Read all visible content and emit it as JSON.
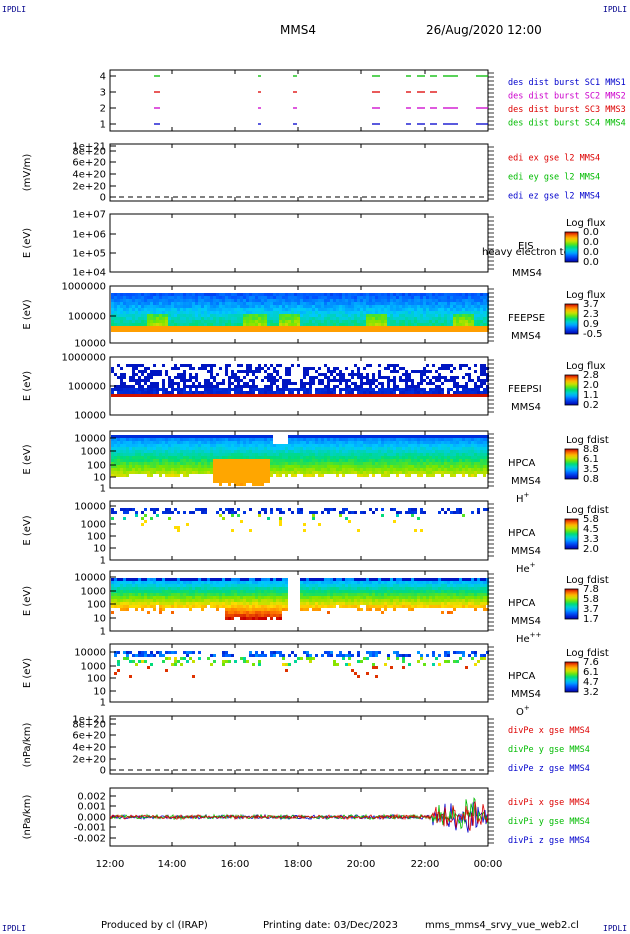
{
  "corner_label": "IPDLI",
  "header": {
    "spacecraft": "MMS4",
    "datetime": "26/Aug/2020 12:00"
  },
  "footer": {
    "produced_by": "Produced by cl (IRAP)",
    "printing_date": "Printing date: 03/Dec/2023",
    "script": "mms_mms4_srvy_vue_web2.cl"
  },
  "colors": {
    "mms1": "#0000cc",
    "mms2": "#cc00cc",
    "mms3": "#dd0000",
    "mms4": "#00bb00",
    "x": "#dd0000",
    "y": "#00bb00",
    "z": "#0000cc"
  },
  "chart_data": {
    "type": "multi-panel time series",
    "x_tick_labels": [
      "12:00",
      "14:00",
      "16:00",
      "18:00",
      "20:00",
      "22:00",
      "00:00"
    ],
    "panels": [
      {
        "id": "burst",
        "type": "line",
        "yticks": [
          "1",
          "2",
          "3",
          "4"
        ],
        "legend": [
          "des dist burst SC1 MMS1",
          "des dist burst SC2 MMS2",
          "des dist burst SC3 MMS3",
          "des dist burst SC4 MMS4"
        ]
      },
      {
        "id": "edi",
        "type": "line",
        "ylabel": "(mV/m)",
        "yticks": [
          "0",
          "2e+20",
          "4e+20",
          "6e+20",
          "8e+20",
          "1e+21"
        ],
        "legend": [
          "edi ex gse l2 MMS4",
          "edi ey gse l2 MMS4",
          "edi ez gse l2 MMS4"
        ]
      },
      {
        "id": "eis",
        "type": "heatmap",
        "ylabel": "E (eV)",
        "yticks": [
          "1e+04",
          "1e+05",
          "1e+06",
          "1e+07"
        ],
        "instrument": [
          "EIS",
          "MMS4"
        ],
        "overlay_text": "heavy electron to",
        "colorbar": {
          "title": "Log flux",
          "ticks": [
            "0.0",
            "0.0",
            "0.0",
            "0.0"
          ]
        }
      },
      {
        "id": "feepse",
        "type": "heatmap",
        "ylabel": "E (eV)",
        "yticks": [
          "10000",
          "100000",
          "1000000"
        ],
        "instrument": [
          "FEEPSE",
          "MMS4"
        ],
        "colorbar": {
          "title": "Log flux",
          "ticks": [
            "3.7",
            "2.3",
            "0.9",
            "-0.5"
          ]
        }
      },
      {
        "id": "feepsi",
        "type": "heatmap",
        "ylabel": "E (eV)",
        "yticks": [
          "10000",
          "100000",
          "1000000"
        ],
        "instrument": [
          "FEEPSI",
          "MMS4"
        ],
        "colorbar": {
          "title": "Log flux",
          "ticks": [
            "2.8",
            "2.0",
            "1.1",
            "0.2"
          ]
        }
      },
      {
        "id": "hpca_h",
        "type": "heatmap",
        "ylabel": "E (eV)",
        "yticks": [
          "1",
          "10",
          "100",
          "1000",
          "10000"
        ],
        "instrument": [
          "HPCA",
          "MMS4"
        ],
        "species": "H",
        "charge": "+",
        "colorbar": {
          "title": "Log fdist",
          "ticks": [
            "8.8",
            "6.1",
            "3.5",
            "0.8"
          ]
        }
      },
      {
        "id": "hpca_he1",
        "type": "heatmap",
        "ylabel": "E (eV)",
        "yticks": [
          "1",
          "10",
          "100",
          "1000",
          "10000"
        ],
        "instrument": [
          "HPCA",
          "MMS4"
        ],
        "species": "He",
        "charge": "+",
        "colorbar": {
          "title": "Log fdist",
          "ticks": [
            "5.8",
            "4.5",
            "3.3",
            "2.0"
          ]
        }
      },
      {
        "id": "hpca_he2",
        "type": "heatmap",
        "ylabel": "E (eV)",
        "yticks": [
          "1",
          "10",
          "100",
          "1000",
          "10000"
        ],
        "instrument": [
          "HPCA",
          "MMS4"
        ],
        "species": "He",
        "charge": "++",
        "colorbar": {
          "title": "Log fdist",
          "ticks": [
            "7.8",
            "5.8",
            "3.7",
            "1.7"
          ]
        }
      },
      {
        "id": "hpca_o",
        "type": "heatmap",
        "ylabel": "E (eV)",
        "yticks": [
          "1",
          "10",
          "100",
          "1000",
          "10000"
        ],
        "instrument": [
          "HPCA",
          "MMS4"
        ],
        "species": "O",
        "charge": "+",
        "colorbar": {
          "title": "Log fdist",
          "ticks": [
            "7.6",
            "6.1",
            "4.7",
            "3.2"
          ]
        }
      },
      {
        "id": "divpe",
        "type": "line",
        "ylabel": "(nPa/km)",
        "yticks": [
          "0",
          "2e+20",
          "4e+20",
          "6e+20",
          "8e+20",
          "1e+21"
        ],
        "legend": [
          "divPe x gse MMS4",
          "divPe y gse MMS4",
          "divPe z gse MMS4"
        ]
      },
      {
        "id": "divpi",
        "type": "line",
        "ylabel": "(nPa/km)",
        "yticks": [
          "-0.002",
          "-0.001",
          "0.000",
          "0.001",
          "0.002"
        ],
        "legend": [
          "divPi x gse MMS4",
          "divPi y gse MMS4",
          "divPi z gse MMS4"
        ]
      }
    ]
  }
}
